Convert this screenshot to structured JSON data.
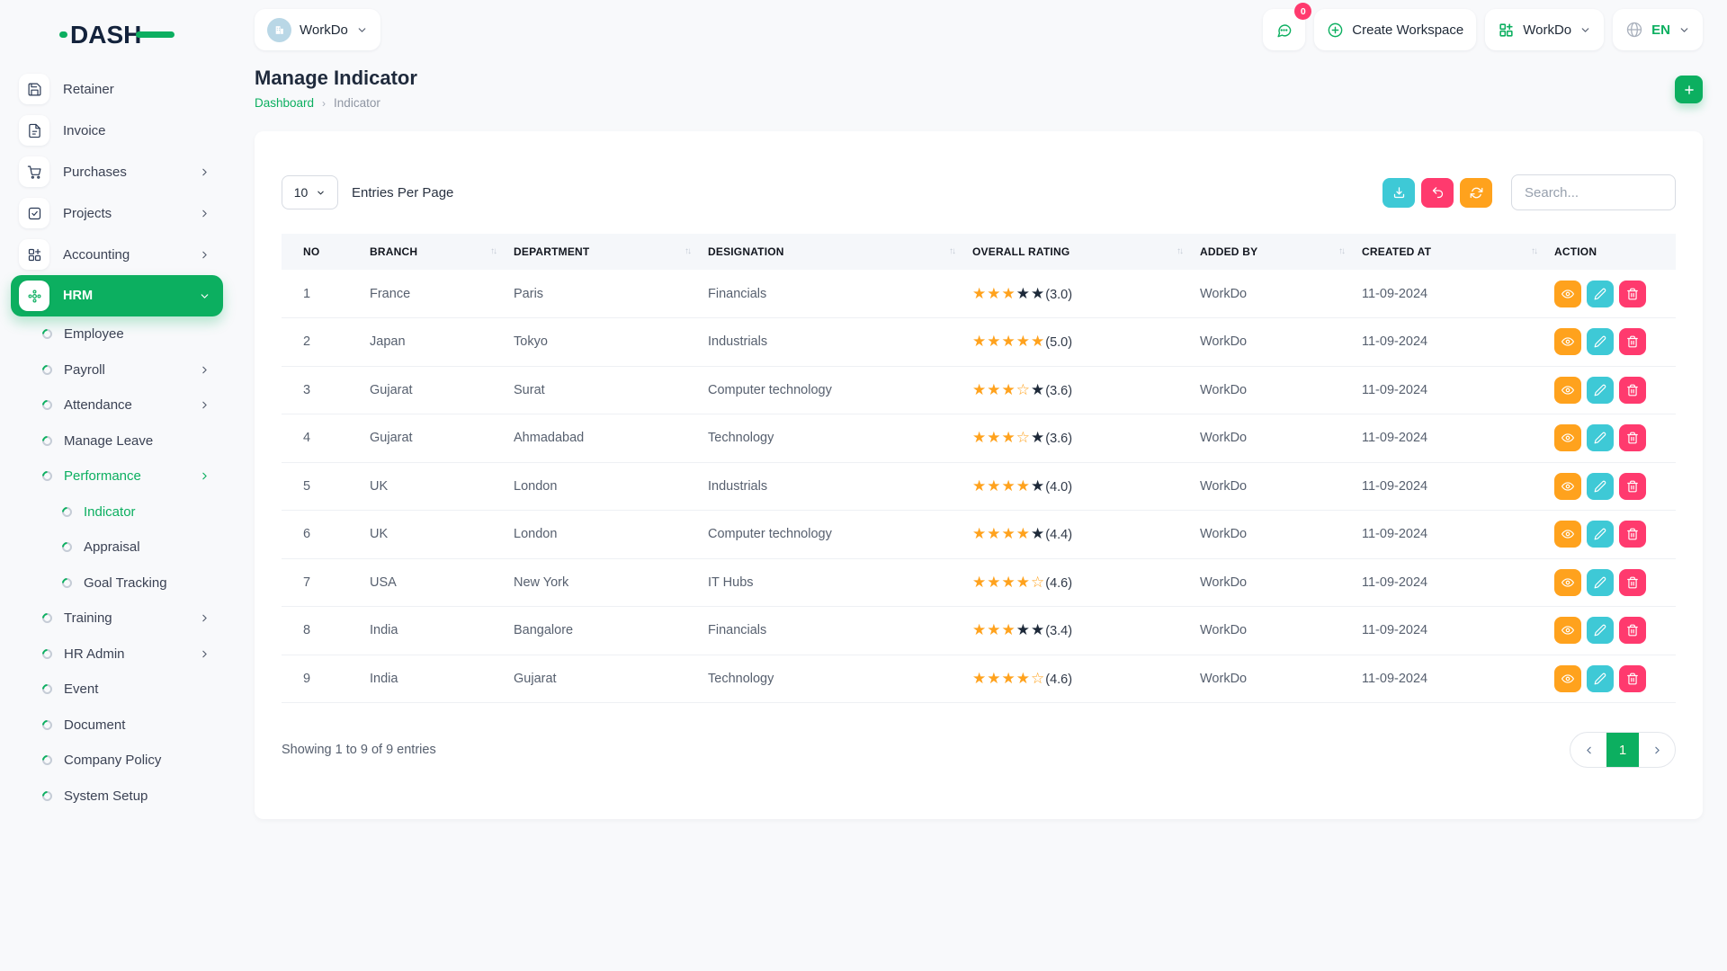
{
  "colors": {
    "primary": "#0CAF60",
    "info": "#3EC9D6",
    "warning": "#FFA21D",
    "danger": "#FF3A6E",
    "star_empty": "#1D2939",
    "navy": "#14233c"
  },
  "brand": {
    "name": "DASH"
  },
  "topbar": {
    "workspace": {
      "label": "WorkDo"
    },
    "messages": {
      "badge": "0"
    },
    "create_workspace": {
      "label": "Create Workspace"
    },
    "workspace_menu": {
      "label": "WorkDo"
    },
    "language": {
      "label": "EN"
    }
  },
  "sidebar": {
    "items": [
      {
        "label": "Retainer"
      },
      {
        "label": "Invoice"
      },
      {
        "label": "Purchases"
      },
      {
        "label": "Projects"
      },
      {
        "label": "Accounting"
      },
      {
        "label": "HRM"
      }
    ],
    "hrm_items": [
      {
        "label": "Employee"
      },
      {
        "label": "Payroll"
      },
      {
        "label": "Attendance"
      },
      {
        "label": "Manage Leave"
      },
      {
        "label": "Performance"
      },
      {
        "label": "Training"
      },
      {
        "label": "HR Admin"
      },
      {
        "label": "Event"
      },
      {
        "label": "Document"
      },
      {
        "label": "Company Policy"
      },
      {
        "label": "System Setup"
      }
    ],
    "performance_items": [
      {
        "label": "Indicator"
      },
      {
        "label": "Appraisal"
      },
      {
        "label": "Goal Tracking"
      }
    ]
  },
  "page": {
    "title": "Manage Indicator",
    "breadcrumb": {
      "root": "Dashboard",
      "separator": "›",
      "current": "Indicator"
    }
  },
  "toolbar": {
    "page_size": "10",
    "page_size_label": "Entries Per Page",
    "search_placeholder": "Search..."
  },
  "stars_glyphs": {
    "full": "★",
    "half": "☆",
    "empty": "★"
  },
  "table": {
    "sort_glyph": "↑↓",
    "columns": [
      "NO",
      "BRANCH",
      "DEPARTMENT",
      "DESIGNATION",
      "OVERALL RATING",
      "ADDED BY",
      "CREATED AT",
      "ACTION"
    ],
    "rows": [
      {
        "no": "1",
        "branch": "France",
        "department": "Paris",
        "designation": "Financials",
        "stars": {
          "full": 3,
          "half": 0,
          "empty": 2
        },
        "rating_text": "(3.0)",
        "added_by": "WorkDo",
        "created_at": "11-09-2024"
      },
      {
        "no": "2",
        "branch": "Japan",
        "department": "Tokyo",
        "designation": "Industrials",
        "stars": {
          "full": 5,
          "half": 0,
          "empty": 0
        },
        "rating_text": "(5.0)",
        "added_by": "WorkDo",
        "created_at": "11-09-2024"
      },
      {
        "no": "3",
        "branch": "Gujarat",
        "department": "Surat",
        "designation": "Computer technology",
        "stars": {
          "full": 3,
          "half": 1,
          "empty": 1
        },
        "rating_text": "(3.6)",
        "added_by": "WorkDo",
        "created_at": "11-09-2024"
      },
      {
        "no": "4",
        "branch": "Gujarat",
        "department": "Ahmadabad",
        "designation": "Technology",
        "stars": {
          "full": 3,
          "half": 1,
          "empty": 1
        },
        "rating_text": "(3.6)",
        "added_by": "WorkDo",
        "created_at": "11-09-2024"
      },
      {
        "no": "5",
        "branch": "UK",
        "department": "London",
        "designation": "Industrials",
        "stars": {
          "full": 4,
          "half": 0,
          "empty": 1
        },
        "rating_text": "(4.0)",
        "added_by": "WorkDo",
        "created_at": "11-09-2024"
      },
      {
        "no": "6",
        "branch": "UK",
        "department": "London",
        "designation": "Computer technology",
        "stars": {
          "full": 4,
          "half": 0,
          "empty": 1
        },
        "rating_text": "(4.4)",
        "added_by": "WorkDo",
        "created_at": "11-09-2024"
      },
      {
        "no": "7",
        "branch": "USA",
        "department": "New York",
        "designation": "IT Hubs",
        "stars": {
          "full": 4,
          "half": 1,
          "empty": 0
        },
        "rating_text": "(4.6)",
        "added_by": "WorkDo",
        "created_at": "11-09-2024"
      },
      {
        "no": "8",
        "branch": "India",
        "department": "Bangalore",
        "designation": "Financials",
        "stars": {
          "full": 3,
          "half": 0,
          "empty": 2
        },
        "rating_text": "(3.4)",
        "added_by": "WorkDo",
        "created_at": "11-09-2024"
      },
      {
        "no": "9",
        "branch": "India",
        "department": "Gujarat",
        "designation": "Technology",
        "stars": {
          "full": 4,
          "half": 1,
          "empty": 0
        },
        "rating_text": "(4.6)",
        "added_by": "WorkDo",
        "created_at": "11-09-2024"
      }
    ]
  },
  "footer": {
    "showing_text": "Showing 1 to 9 of 9 entries",
    "pagination": {
      "current": "1"
    }
  }
}
